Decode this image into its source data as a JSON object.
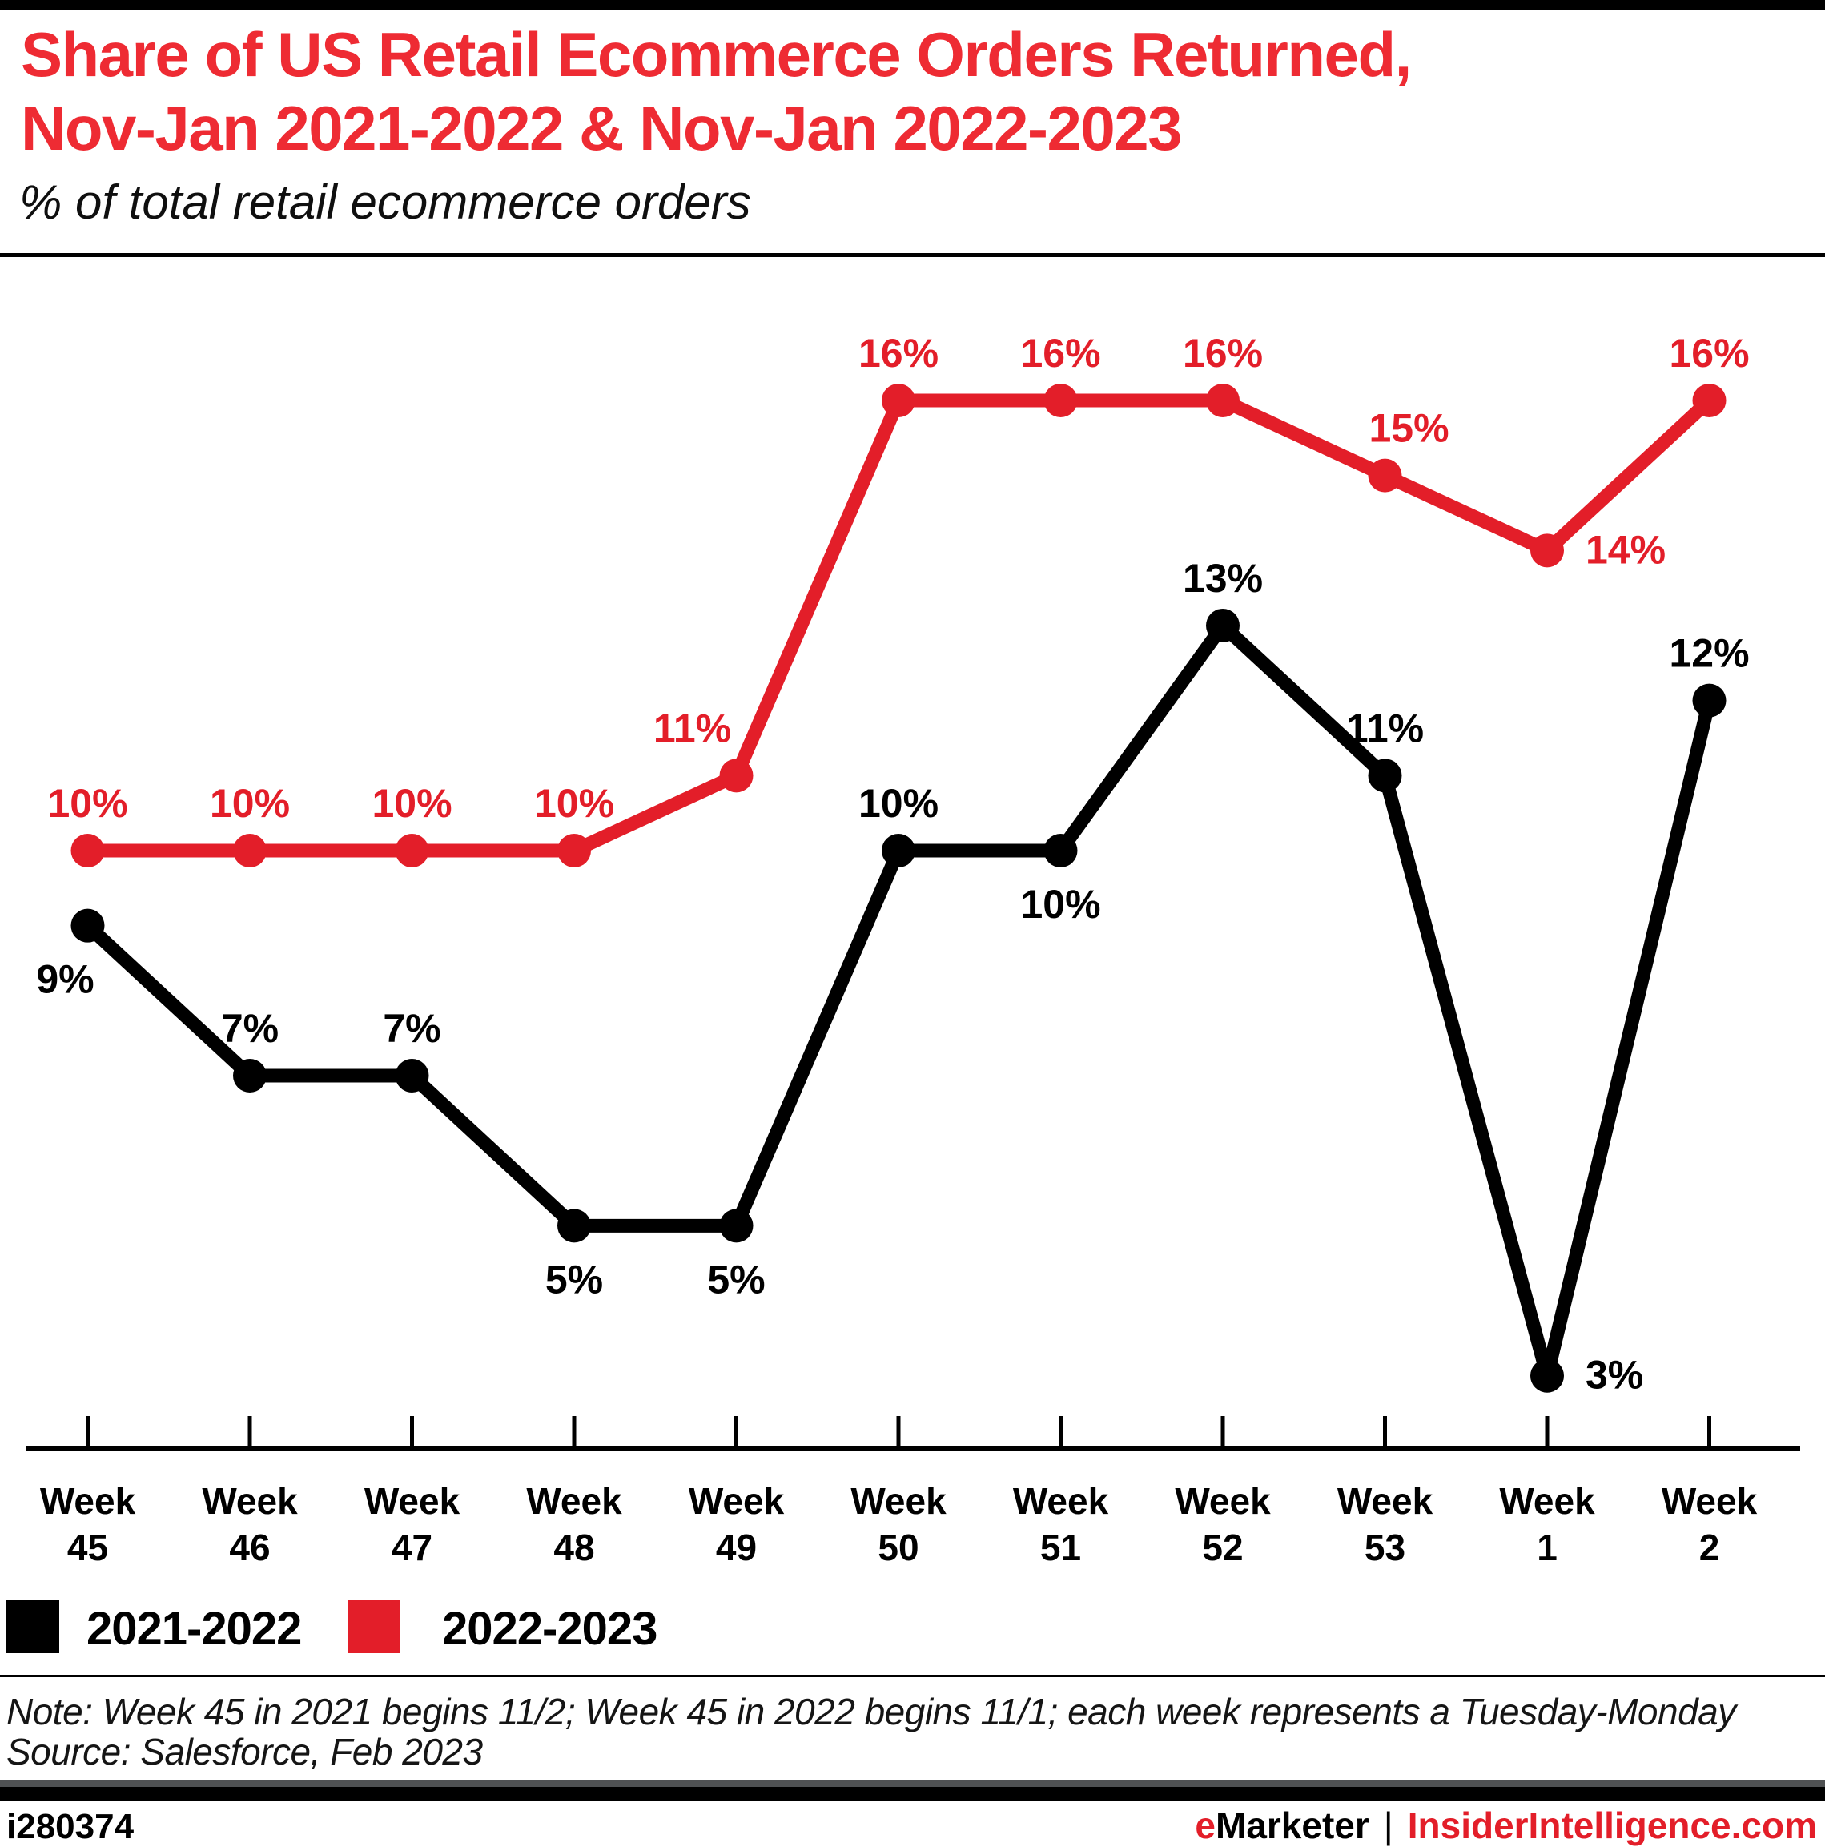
{
  "header": {
    "title_line1": "Share of US Retail Ecommerce Orders Returned,",
    "title_line2": "Nov-Jan 2021-2022 & Nov-Jan 2022-2023",
    "subtitle": "% of total retail ecommerce orders"
  },
  "colors": {
    "title_red": "#ee2b33",
    "accent_red": "#e31e29",
    "black": "#000000"
  },
  "chart_data": {
    "type": "line",
    "unit": "%",
    "tick_prefix": "Week",
    "categories": [
      "45",
      "46",
      "47",
      "48",
      "49",
      "50",
      "51",
      "52",
      "53",
      "1",
      "2"
    ],
    "series": [
      {
        "name": "2021-2022",
        "color": "#000000",
        "values": [
          9,
          7,
          7,
          5,
          5,
          10,
          10,
          13,
          11,
          3,
          12
        ],
        "label_pos": [
          "below-left",
          "above",
          "above",
          "below",
          "below",
          "above",
          "below",
          "above",
          "above",
          "right",
          "above"
        ]
      },
      {
        "name": "2022-2023",
        "color": "#e31e29",
        "values": [
          10,
          10,
          10,
          10,
          11,
          16,
          16,
          16,
          15,
          14,
          16
        ],
        "label_pos": [
          "above",
          "above",
          "above",
          "above",
          "above-left",
          "above",
          "above",
          "above",
          "above-right",
          "right",
          "above"
        ]
      }
    ],
    "ylim": [
      2,
      17.5
    ],
    "xlabel": "",
    "ylabel": "",
    "grid": false,
    "legend_position": "bottom-left",
    "data_labels_shown": true
  },
  "note": "Note: Week 45 in 2021 begins 11/2; Week 45 in 2022 begins 11/1; each week represents a Tuesday-Monday",
  "source": "Source: Salesforce, Feb 2023",
  "footer": {
    "chart_id": "i280374",
    "brand_e": "e",
    "brand_rest": "Marketer",
    "separator": "|",
    "site": "InsiderIntelligence.com"
  }
}
